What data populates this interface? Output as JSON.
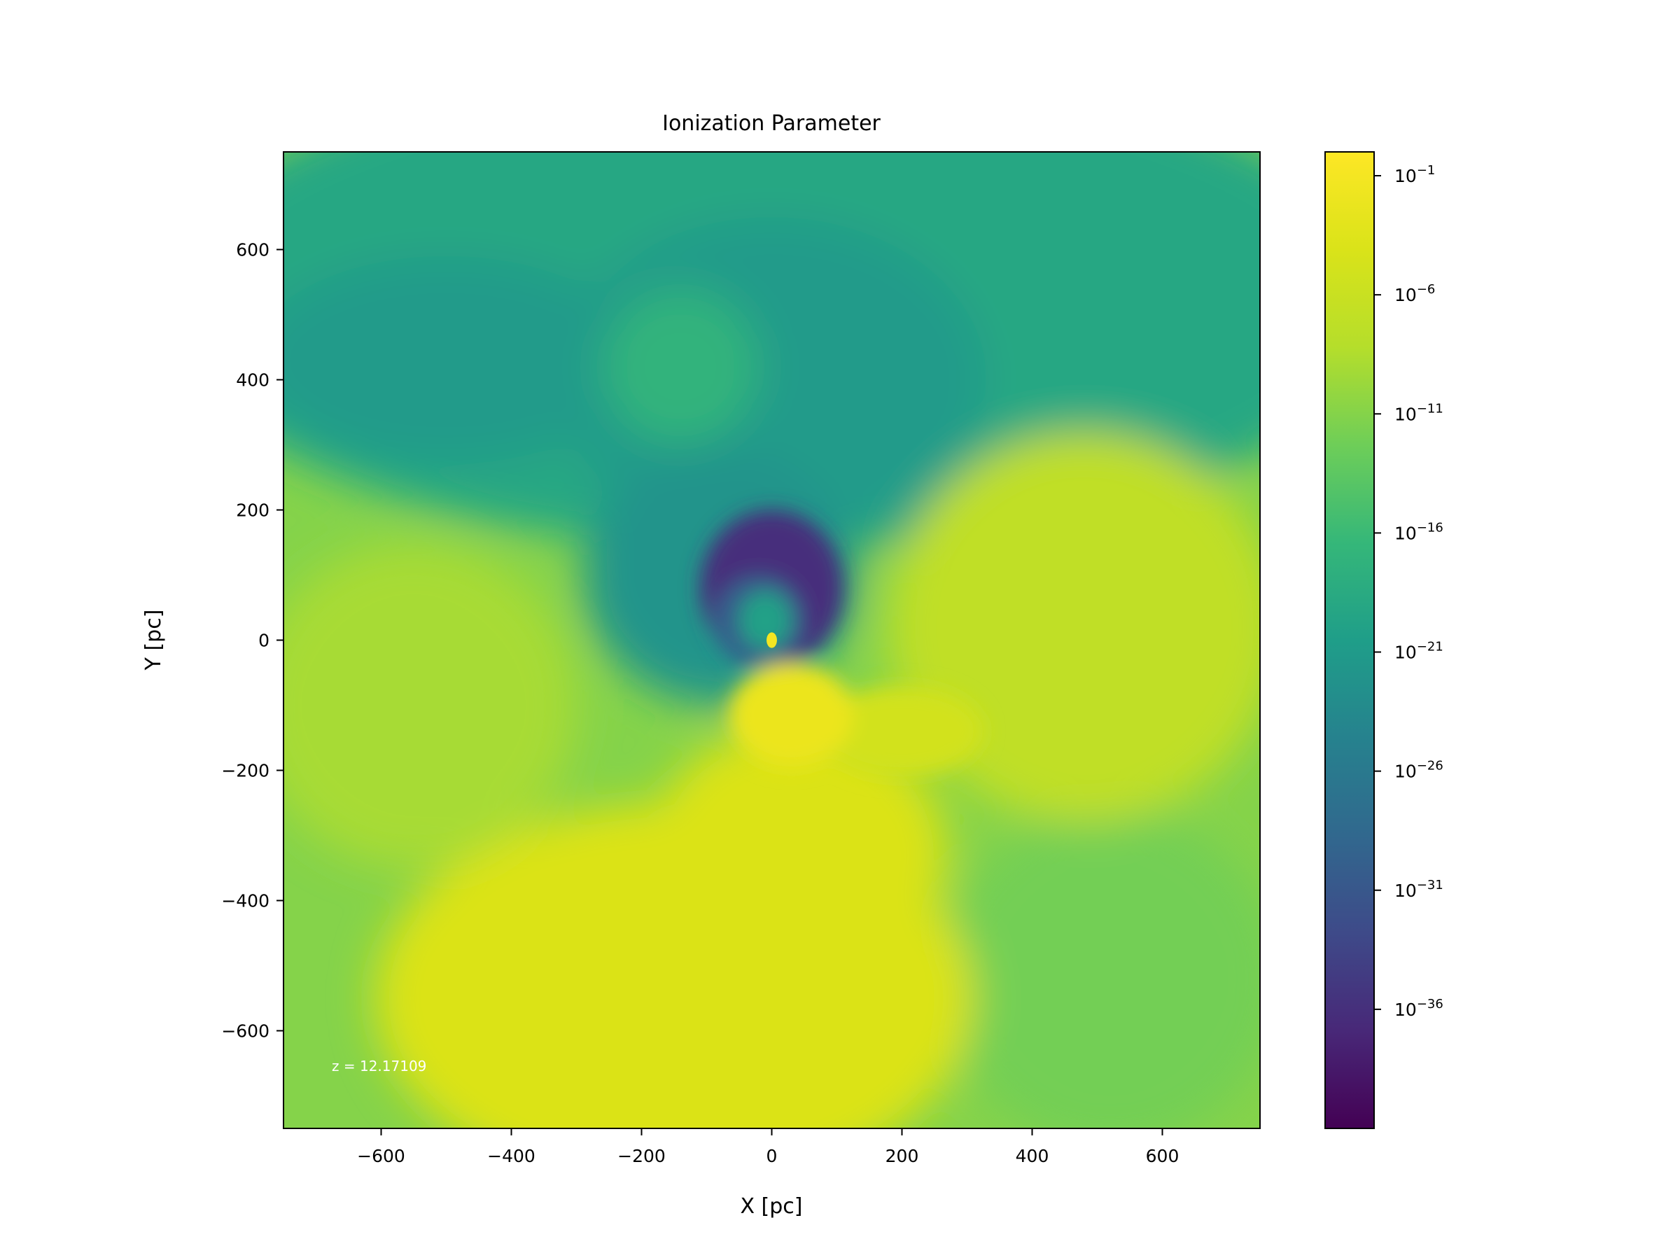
{
  "chart_data": {
    "type": "heatmap",
    "title": "Ionization Parameter",
    "xlabel": "X [pc]",
    "ylabel": "Y [pc]",
    "xlim": [
      -750,
      750
    ],
    "ylim": [
      -750,
      750
    ],
    "x_ticks": [
      -600,
      -400,
      -200,
      0,
      200,
      400,
      600
    ],
    "y_ticks": [
      -600,
      -400,
      -200,
      0,
      200,
      400,
      600
    ],
    "x_tick_labels": [
      "−600",
      "−400",
      "−200",
      "0",
      "200",
      "400",
      "600"
    ],
    "y_tick_labels": [
      "−600",
      "−400",
      "−200",
      "0",
      "200",
      "400",
      "600"
    ],
    "annotation": "z = 12.17109",
    "annotation_color": "#ffffff",
    "colormap": "viridis",
    "colorbar": {
      "scale": "log",
      "range_exponent": [
        -41,
        0
      ],
      "tick_exponents": [
        -1,
        -6,
        -11,
        -16,
        -21,
        -26,
        -31,
        -36
      ],
      "tick_bases": [
        "10",
        "10",
        "10",
        "10",
        "10",
        "10",
        "10",
        "10"
      ],
      "tick_powers": [
        "−1",
        "−6",
        "−11",
        "−16",
        "−21",
        "−26",
        "−31",
        "−36"
      ]
    },
    "grid": false,
    "features": [
      {
        "desc": "background",
        "value_exponent": -11
      },
      {
        "desc": "bright-lobe",
        "x": 30,
        "y": -115,
        "value_exponent": -2
      },
      {
        "desc": "right-lobe",
        "x": 200,
        "y": -140,
        "value_exponent": -5
      },
      {
        "desc": "south-plume",
        "x": -150,
        "y": -550,
        "value_exponent": -4
      },
      {
        "desc": "northern-arc",
        "x": 0,
        "y": 400,
        "value_exponent": -21
      },
      {
        "desc": "central-void",
        "x": 0,
        "y": 80,
        "value_exponent": -36
      },
      {
        "desc": "core",
        "x": 0,
        "y": 0,
        "value_exponent": -1
      }
    ]
  }
}
